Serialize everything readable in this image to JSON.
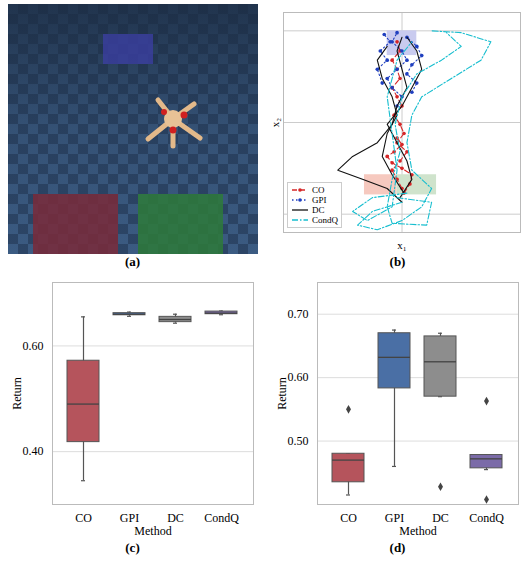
{
  "chart_data": [
    {
      "type": "image",
      "panel": "(a)"
    },
    {
      "type": "line",
      "panel": "(b)",
      "x_label": "x₁",
      "y_label": "x₂",
      "xlim": [
        -6,
        6
      ],
      "ylim": [
        -1,
        11
      ],
      "xticks": [
        0
      ],
      "yticks": [
        0,
        5,
        10
      ],
      "grid": true,
      "tick_labels": false,
      "legend": "lower left",
      "regions": [
        {
          "color": "#c9cbef",
          "x": [
            -0.75,
            0.75
          ],
          "y": [
            8.65,
            10
          ]
        },
        {
          "color": "#f6c9bf",
          "x": [
            -1.9,
            -0.25
          ],
          "y": [
            1.05,
            2.15
          ]
        },
        {
          "color": "#cfe3cc",
          "x": [
            -0.25,
            1.75
          ],
          "y": [
            1.05,
            2.15
          ]
        }
      ],
      "series": [
        {
          "name": "CO",
          "color": "#d62728",
          "line_style": "dashed",
          "marker": "dot",
          "trajectories": [
            {
              "x": [
                0,
                -0.25,
                -0.5,
                -0.1,
                0.25,
                -0.25,
                0.1,
                -0.1,
                -0.4,
                0,
                -0.25,
                -0.5,
                -0.1,
                -0.25,
                -0.5,
                -0.1,
                -0.25
              ],
              "y": [
                1.4,
                1.9,
                2.4,
                2.9,
                3.4,
                3.9,
                4.4,
                4.9,
                5.4,
                5.9,
                6.4,
                6.9,
                7.4,
                7.9,
                8.4,
                8.9,
                9.4
              ]
            },
            {
              "x": [
                0.1,
                0.4,
                0.5,
                0,
                -0.5,
                -0.75,
                -0.4,
                0,
                -0.25
              ],
              "y": [
                1.15,
                1.65,
                2.15,
                2.5,
                2.8,
                3.15,
                3.4,
                3.8,
                4.15
              ]
            }
          ]
        },
        {
          "name": "GPI",
          "color": "#1f3fbf",
          "line_style": "dotted",
          "marker": "dot",
          "trajectories": [
            {
              "x": [
                -0.25,
                0,
                -0.5,
                -0.75,
                -0.25,
                0.25,
                0,
                -0.5,
                -0.25
              ],
              "y": [
                5.9,
                6.4,
                6.9,
                7.4,
                7.9,
                8.4,
                8.9,
                9.4,
                9.9
              ]
            },
            {
              "x": [
                0.5,
                0.75,
                0.25,
                0.5,
                1,
                0.75,
                0.25
              ],
              "y": [
                6.65,
                7.15,
                7.65,
                8.15,
                8.65,
                9.15,
                9.65
              ]
            },
            {
              "x": [
                -1,
                -1.25,
                -0.75,
                -1.1,
                -0.6,
                -0.9
              ],
              "y": [
                7.15,
                7.9,
                8.4,
                8.9,
                9.4,
                9.8
              ]
            }
          ]
        },
        {
          "name": "DC",
          "color": "#111111",
          "line_style": "solid",
          "marker": "none",
          "trajectories": [
            {
              "x": [
                0,
                -0.75,
                -2,
                -3.25,
                -2.5,
                -1.25,
                -0.5,
                -0.25,
                0.25,
                0,
                -0.25,
                0
              ],
              "y": [
                0.65,
                1.4,
                1.9,
                2.4,
                3.15,
                3.9,
                4.9,
                5.9,
                6.9,
                7.9,
                8.9,
                9.65
              ]
            },
            {
              "x": [
                -0.1,
                0.5,
                0.25,
                -0.25,
                -0.75,
                0,
                0.5,
                1,
                0.75,
                0.25
              ],
              "y": [
                0.9,
                1.9,
                2.9,
                3.9,
                4.9,
                5.9,
                6.9,
                7.9,
                8.9,
                9.65
              ]
            },
            {
              "x": [
                0.1,
                -0.5,
                -1,
                -0.75,
                -0.25,
                -0.5,
                -1,
                -1.25,
                -0.75
              ],
              "y": [
                1.15,
                2.15,
                3.15,
                4.4,
                5.4,
                6.4,
                7.4,
                8.4,
                9.15
              ]
            }
          ]
        },
        {
          "name": "CondQ",
          "color": "#17becf",
          "line_style": "dashdot",
          "marker": "none",
          "trajectories": [
            {
              "x": [
                0,
                -1.5,
                -2.25,
                -1.25,
                0,
                1,
                1.5,
                0.5,
                0.25,
                0.5,
                1,
                2.5,
                4,
                4.5,
                3,
                1.5
              ],
              "y": [
                0.65,
                0.15,
                -0.6,
                -0.85,
                -0.35,
                0.4,
                1.4,
                2.4,
                3.9,
                5.4,
                6.4,
                7.4,
                8.4,
                9.4,
                9.9,
                10
              ]
            },
            {
              "x": [
                -0.25,
                1.5,
                1.25,
                -0.5,
                -0.75,
                -0.5,
                -0.1,
                -0.35,
                0,
                0.75,
                2,
                3,
                2.25
              ],
              "y": [
                0.9,
                0.65,
                -0.6,
                -0.5,
                0.4,
                1.9,
                3.4,
                4.9,
                6.4,
                7.65,
                8.4,
                9.15,
                9.9
              ]
            },
            {
              "x": [
                0.25,
                -1.5,
                -2.5,
                -1.75,
                -0.5,
                -0.25,
                -0.5,
                -0.75,
                -0.25,
                0.5
              ],
              "y": [
                1.15,
                0.9,
                0.15,
                -0.35,
                0.4,
                2.4,
                4.4,
                6.4,
                8.4,
                9.4
              ]
            }
          ]
        }
      ]
    },
    {
      "type": "box",
      "panel": "(c)",
      "x_label": "Method",
      "y_label": "Return",
      "categories": [
        "CO",
        "GPI",
        "DC",
        "CondQ"
      ],
      "colors": [
        "#b5545c",
        "#4a6fa5",
        "#8d8d8d",
        "#7b6ba8"
      ],
      "ylim": [
        0.3,
        0.72
      ],
      "yticks": [
        0.4,
        0.6
      ],
      "grid": true,
      "boxes": [
        {
          "min": 0.345,
          "q1": 0.418,
          "median": 0.49,
          "q3": 0.572,
          "max": 0.655,
          "outliers": []
        },
        {
          "min": 0.656,
          "q1": 0.658,
          "median": 0.66,
          "q3": 0.662,
          "max": 0.664,
          "outliers": []
        },
        {
          "min": 0.643,
          "q1": 0.645,
          "median": 0.65,
          "q3": 0.655,
          "max": 0.66,
          "outliers": []
        },
        {
          "min": 0.659,
          "q1": 0.66,
          "median": 0.662,
          "q3": 0.665,
          "max": 0.666,
          "outliers": []
        }
      ]
    },
    {
      "type": "box",
      "panel": "(d)",
      "x_label": "Method",
      "y_label": "Return",
      "categories": [
        "CO",
        "GPI",
        "DC",
        "CondQ"
      ],
      "colors": [
        "#b5545c",
        "#4a6fa5",
        "#8d8d8d",
        "#7b6ba8"
      ],
      "ylim": [
        0.4,
        0.75
      ],
      "yticks": [
        0.5,
        0.6,
        0.7
      ],
      "grid": true,
      "boxes": [
        {
          "min": 0.415,
          "q1": 0.435,
          "median": 0.47,
          "q3": 0.48,
          "max": 0.48,
          "outliers": [
            0.55
          ]
        },
        {
          "min": 0.46,
          "q1": 0.583,
          "median": 0.632,
          "q3": 0.67,
          "max": 0.675,
          "outliers": []
        },
        {
          "min": 0.57,
          "q1": 0.57,
          "median": 0.625,
          "q3": 0.665,
          "max": 0.67,
          "outliers": [
            0.428
          ]
        },
        {
          "min": 0.455,
          "q1": 0.457,
          "median": 0.472,
          "q3": 0.478,
          "max": 0.478,
          "outliers": [
            0.563,
            0.408
          ]
        }
      ]
    }
  ]
}
